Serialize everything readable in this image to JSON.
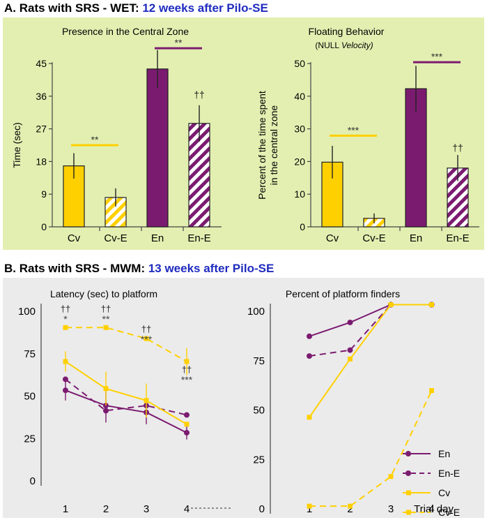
{
  "section_a": {
    "prefix": "A. Rats with SRS - WET: ",
    "highlight": "12 weeks after Pilo-SE"
  },
  "section_b": {
    "prefix": "B. Rats with SRS - MWM: ",
    "highlight": "13 weeks after Pilo-SE"
  },
  "colors": {
    "yellow": "#ffd000",
    "purple": "#7b1b70",
    "panel_a_bg": "#e3efb1",
    "panel_b_bg": "#ebebeb",
    "title_blue": "#1f2bbf"
  },
  "chart_data": [
    {
      "type": "bar",
      "title": "Presence in the Central Zone",
      "subtitle_plain": "",
      "subtitle_italic": "",
      "ylabel": "Time (sec)",
      "ylabel2": "",
      "ylim": [
        0,
        45
      ],
      "yticks": [
        "0",
        "9",
        "18",
        "27",
        "36",
        "45"
      ],
      "yticks_vals": [
        0,
        9,
        18,
        27,
        36,
        45
      ],
      "categories": [
        "Cv",
        "Cv-E",
        "En",
        "En-E"
      ],
      "values": [
        16.8,
        8.1,
        43.5,
        28.5
      ],
      "errors": [
        3.5,
        2.5,
        5.2,
        5.0
      ],
      "fills": [
        "yellow-solid",
        "yellow-hatch",
        "purple-solid",
        "purple-hatch"
      ],
      "annotations": [
        {
          "text": "**",
          "between": [
            0,
            1
          ],
          "at": 22.5,
          "color": "yellow"
        },
        {
          "text": "**",
          "between": [
            2,
            3
          ],
          "at": 49.2,
          "color": "purple"
        },
        {
          "text": "††",
          "over": 3,
          "at": 35.5
        }
      ]
    },
    {
      "type": "bar",
      "title": "Floating Behavior",
      "subtitle_plain": "(NULL ",
      "subtitle_italic": "Velocity)",
      "ylabel": "Percent of the time spent",
      "ylabel2": "in the central zone",
      "ylim": [
        0,
        50
      ],
      "yticks": [
        "0",
        "10",
        "20",
        "30",
        "40",
        "50"
      ],
      "yticks_vals": [
        0,
        10,
        20,
        30,
        40,
        50
      ],
      "categories": [
        "Cv",
        "Cv-E",
        "En",
        "En-E"
      ],
      "values": [
        19.8,
        2.6,
        42.3,
        18.0
      ],
      "errors": [
        5.0,
        1.5,
        7.0,
        4.0
      ],
      "fills": [
        "yellow-solid",
        "yellow-hatch",
        "purple-solid",
        "purple-hatch"
      ],
      "annotations": [
        {
          "text": "***",
          "between": [
            0,
            1
          ],
          "at": 27.9,
          "color": "yellow"
        },
        {
          "text": "***",
          "between": [
            2,
            3
          ],
          "at": 50.4,
          "color": "purple"
        },
        {
          "text": "††",
          "over": 3,
          "at": 23.2
        }
      ]
    },
    {
      "type": "line",
      "title": "Latency (sec) to platform",
      "ylim": [
        0,
        100
      ],
      "yticks": [
        "0",
        "25",
        "50",
        "75",
        "100"
      ],
      "yticks_vals": [
        0,
        25,
        50,
        75,
        100
      ],
      "x": [
        1,
        2,
        3,
        4
      ],
      "xticks": [
        "1",
        "2",
        "3",
        "4"
      ],
      "series": [
        {
          "name": "En",
          "values": [
            53,
            44,
            40,
            28
          ],
          "errors": [
            6,
            10,
            7,
            4
          ],
          "color": "purple",
          "marker": "circle",
          "dash": false
        },
        {
          "name": "En-E",
          "values": [
            59.5,
            41,
            44,
            38.5
          ],
          "errors": [
            0,
            0,
            0,
            0
          ],
          "color": "purple",
          "marker": "circle",
          "dash": true
        },
        {
          "name": "Cv",
          "values": [
            70,
            54,
            47,
            33
          ],
          "errors": [
            6,
            10,
            10,
            0
          ],
          "color": "yellow",
          "marker": "square",
          "dash": false
        },
        {
          "name": "Cv-E",
          "values": [
            90,
            90,
            83.5,
            70
          ],
          "errors": [
            0,
            0,
            0,
            8
          ],
          "color": "yellow",
          "marker": "square",
          "dash": true
        }
      ],
      "annotations": [
        {
          "x": 1,
          "dagger": "††",
          "star": "*"
        },
        {
          "x": 2,
          "dagger": "††",
          "star": "**"
        },
        {
          "x": 3,
          "dagger": "††",
          "star": "***"
        },
        {
          "x": 4,
          "dagger": "††",
          "star": "***"
        }
      ]
    },
    {
      "type": "line",
      "title": "Percent of platform finders",
      "xlabel": "Trial day",
      "ylim": [
        0,
        100
      ],
      "yticks": [
        "0",
        "25",
        "50",
        "75",
        "100"
      ],
      "yticks_vals": [
        0,
        25,
        50,
        75,
        100
      ],
      "x": [
        1,
        2,
        3,
        4
      ],
      "xticks": [
        "1",
        "2",
        "3",
        "4"
      ],
      "series": [
        {
          "name": "En",
          "values": [
            87,
            94,
            103,
            103
          ],
          "color": "purple",
          "marker": "circle",
          "dash": false
        },
        {
          "name": "En-E",
          "values": [
            77,
            80,
            103,
            103
          ],
          "color": "purple",
          "marker": "circle",
          "dash": true
        },
        {
          "name": "Cv",
          "values": [
            46,
            75.5,
            103,
            103
          ],
          "color": "yellow",
          "marker": "square",
          "dash": false
        },
        {
          "name": "Cv-E",
          "values": [
            1,
            1,
            16,
            59.5
          ],
          "color": "yellow",
          "marker": "square",
          "dash": true
        }
      ],
      "legend": [
        "En",
        "En-E",
        "Cv",
        "Cv-E"
      ],
      "legend_placement": "bottom-right"
    }
  ]
}
